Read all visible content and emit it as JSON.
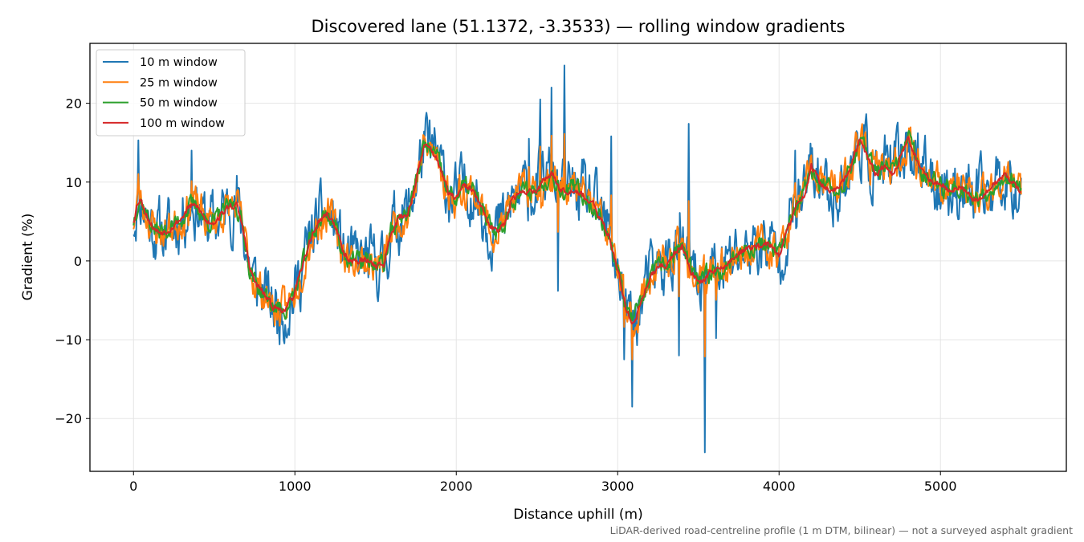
{
  "chart_data": {
    "type": "line",
    "title": "Discovered lane (51.1372, -3.3533) — rolling window gradients",
    "xlabel": "Distance uphill (m)",
    "ylabel": "Gradient (%)",
    "xlim": [
      -270,
      5780
    ],
    "ylim": [
      -26.7,
      27.6
    ],
    "xticks": [
      0,
      1000,
      2000,
      3000,
      4000,
      5000
    ],
    "yticks": [
      -20,
      -10,
      0,
      10,
      20
    ],
    "xtick_labels": [
      "0",
      "1000",
      "2000",
      "3000",
      "4000",
      "5000"
    ],
    "ytick_labels": [
      "−20",
      "−10",
      "0",
      "10",
      "20"
    ],
    "grid": true,
    "legend_position": "top-left",
    "footnote": "LiDAR-derived road-centreline profile (1 m DTM, bilinear) — not a surveyed asphalt gradient",
    "baseline": {
      "x": [
        0,
        20,
        40,
        60,
        80,
        100,
        130,
        160,
        200,
        250,
        300,
        350,
        400,
        450,
        500,
        550,
        600,
        640,
        680,
        720,
        760,
        800,
        850,
        900,
        950,
        1000,
        1050,
        1100,
        1150,
        1200,
        1250,
        1300,
        1350,
        1400,
        1450,
        1500,
        1550,
        1600,
        1650,
        1700,
        1750,
        1800,
        1850,
        1900,
        1950,
        2000,
        2050,
        2100,
        2150,
        2200,
        2250,
        2300,
        2350,
        2400,
        2450,
        2500,
        2550,
        2600,
        2650,
        2700,
        2750,
        2800,
        2850,
        2900,
        2950,
        3000,
        3050,
        3100,
        3150,
        3200,
        3250,
        3300,
        3350,
        3400,
        3450,
        3500,
        3550,
        3600,
        3650,
        3700,
        3750,
        3800,
        3850,
        3900,
        3950,
        4000,
        4050,
        4100,
        4150,
        4200,
        4250,
        4300,
        4350,
        4400,
        4450,
        4500,
        4550,
        4600,
        4650,
        4700,
        4750,
        4800,
        4850,
        4900,
        4950,
        5000,
        5050,
        5100,
        5150,
        5200,
        5250,
        5300,
        5350,
        5400,
        5450,
        5500
      ],
      "y": [
        5,
        7,
        8,
        7,
        6,
        5,
        4,
        3.7,
        3.8,
        4.5,
        5.5,
        7,
        6.8,
        5,
        5,
        6,
        7,
        7,
        4,
        -1,
        -3,
        -4,
        -5.5,
        -6.2,
        -6,
        -4,
        -0.5,
        3,
        5,
        6,
        4.5,
        1,
        0,
        0,
        0,
        -0.5,
        -0.5,
        4,
        5.5,
        6,
        10,
        14.5,
        14,
        12,
        8.5,
        8,
        9.5,
        9,
        7,
        4.5,
        3.8,
        5,
        8,
        8.5,
        9,
        9,
        10.5,
        11,
        9,
        9,
        9,
        8,
        7,
        5,
        3,
        -1,
        -6,
        -8,
        -5,
        -2,
        -1,
        -0.5,
        1,
        2,
        -1,
        -3,
        -2,
        -1,
        -1,
        0,
        1,
        1.5,
        1.8,
        2,
        2,
        0.5,
        4,
        6.5,
        8,
        12,
        10,
        9,
        9,
        10,
        12,
        15.5,
        13,
        11,
        12,
        11,
        13,
        15.5,
        13,
        11,
        10,
        10,
        9,
        9.5,
        9,
        8,
        8,
        9,
        10,
        11,
        10,
        8.5
      ]
    },
    "series": [
      {
        "name": "10 m window",
        "color": "#1f77b4",
        "noise": 3.2,
        "seed": 11
      },
      {
        "name": "25 m window",
        "color": "#ff7f0e",
        "noise": 1.9,
        "seed": 23
      },
      {
        "name": "50 m window",
        "color": "#2ca02c",
        "noise": 1.0,
        "seed": 37
      },
      {
        "name": "100 m window",
        "color": "#d62728",
        "noise": 0.35,
        "seed": 53
      }
    ],
    "spikes": [
      {
        "x": 30,
        "y": 15.3
      },
      {
        "x": 360,
        "y": 14
      },
      {
        "x": 640,
        "y": 10.8
      },
      {
        "x": 2450,
        "y": 15.5
      },
      {
        "x": 2520,
        "y": 20.5
      },
      {
        "x": 2590,
        "y": 22
      },
      {
        "x": 2670,
        "y": 24.8
      },
      {
        "x": 2960,
        "y": 15.8
      },
      {
        "x": 3090,
        "y": -18.5
      },
      {
        "x": 3440,
        "y": 17.4
      },
      {
        "x": 3380,
        "y": -12
      },
      {
        "x": 3540,
        "y": -24.3
      },
      {
        "x": 3610,
        "y": -9.8
      },
      {
        "x": 4100,
        "y": 14
      },
      {
        "x": 4600,
        "y": 14
      },
      {
        "x": 4860,
        "y": 16.2
      },
      {
        "x": 2630,
        "y": -3.8
      },
      {
        "x": 3040,
        "y": -12.5
      },
      {
        "x": 890,
        "y": -9.2
      }
    ]
  }
}
